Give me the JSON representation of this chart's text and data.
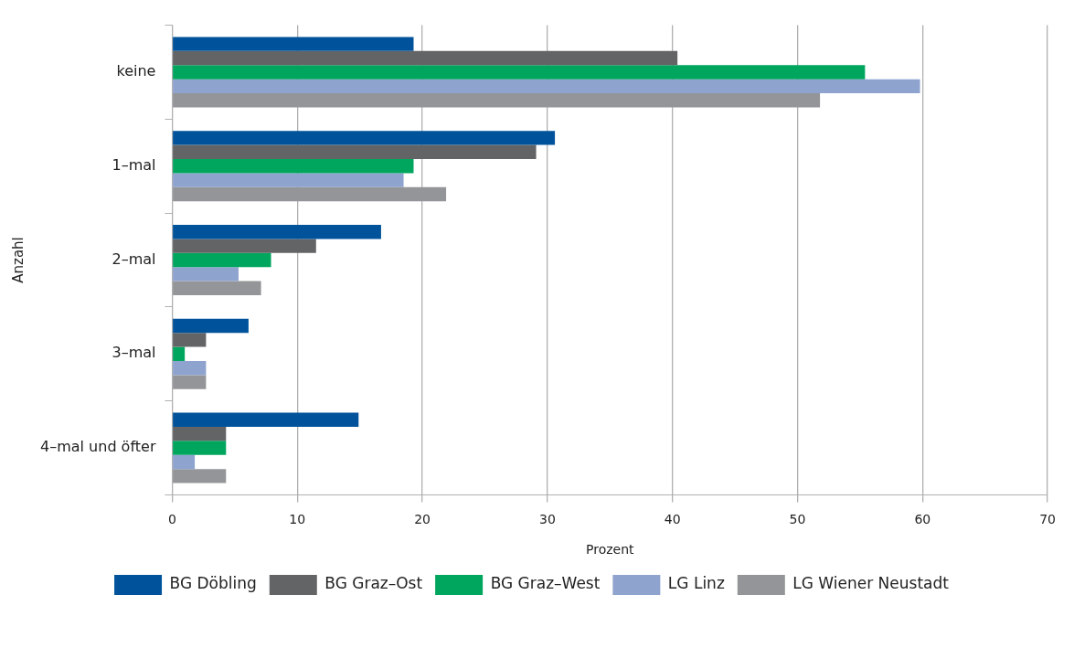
{
  "chart_data": {
    "type": "bar",
    "orientation": "horizontal",
    "xlabel": "Prozent",
    "ylabel": "Anzahl",
    "categories": [
      "keine",
      "1–mal",
      "2–mal",
      "3–mal",
      "4–mal und öfter"
    ],
    "series": [
      {
        "name": "BG Döbling",
        "color": "#00539b",
        "values": [
          19.3,
          30.6,
          16.7,
          6.1,
          14.9
        ]
      },
      {
        "name": "BG Graz–Ost",
        "color": "#636466",
        "values": [
          40.4,
          29.1,
          11.5,
          2.7,
          4.3
        ]
      },
      {
        "name": "BG Graz–West",
        "color": "#00a55e",
        "values": [
          55.4,
          19.3,
          7.9,
          1.0,
          4.3
        ]
      },
      {
        "name": "LG Linz",
        "color": "#8fa3cf",
        "values": [
          59.8,
          18.5,
          5.3,
          2.7,
          1.8
        ]
      },
      {
        "name": "LG Wiener Neustadt",
        "color": "#939598",
        "values": [
          51.8,
          21.9,
          7.1,
          2.7,
          4.3
        ]
      }
    ],
    "xlim": [
      0,
      70
    ],
    "xticks": [
      0,
      10,
      20,
      30,
      40,
      50,
      60,
      70
    ],
    "grid": "x",
    "legend": "bottom"
  }
}
